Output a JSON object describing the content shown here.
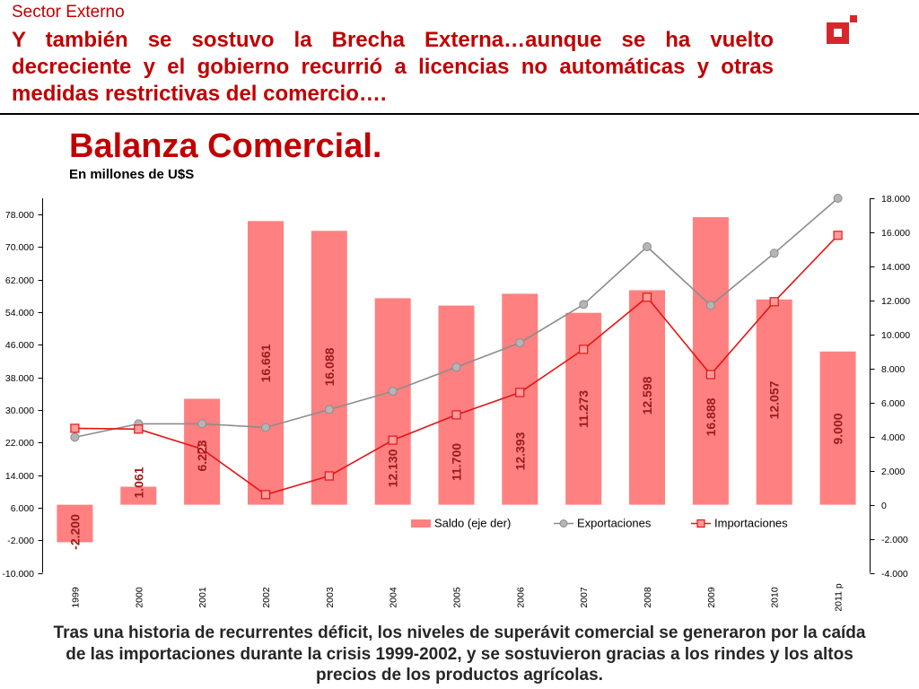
{
  "header": {
    "section": "Sector Externo",
    "headline_lines": [
      "Y también se sostuvo la Brecha Externa…aunque se ha vuelto",
      "decreciente y el gobierno recurrió a licencias no automáticas y otras",
      "medidas restrictivas del comercio…."
    ]
  },
  "logo": {
    "icon": "logo-icon",
    "color": "#d9262c"
  },
  "chart_data": {
    "type": "bar",
    "title": "Balanza Comercial.",
    "subtitle": "En millones de U$S",
    "categories": [
      "1999",
      "2000",
      "2001",
      "2002",
      "2003",
      "2004",
      "2005",
      "2006",
      "2007",
      "2008",
      "2009",
      "2010",
      "2011 p"
    ],
    "series": [
      {
        "name": "Saldo (eje der)",
        "type": "bar",
        "axis": "right",
        "color": "#ff8080",
        "values": [
          -2200,
          1061,
          6223,
          16661,
          16088,
          12130,
          11700,
          12393,
          11273,
          12598,
          16888,
          12057,
          9000
        ],
        "data_labels": [
          "-2.200",
          "1.061",
          "6.223",
          "16.661",
          "16.088",
          "12.130",
          "11.700",
          "12.393",
          "11.273",
          "12.598",
          "16.888",
          "12.057",
          "9.000"
        ]
      },
      {
        "name": "Exportaciones",
        "type": "line",
        "axis": "left",
        "marker": "circle",
        "color": "#8c8c8c",
        "marker_fill": "#b5b5b5",
        "values": [
          23300,
          26600,
          26600,
          25700,
          30100,
          34600,
          40500,
          46500,
          55900,
          70100,
          55700,
          68500,
          82000
        ]
      },
      {
        "name": "Importaciones",
        "type": "line",
        "axis": "left",
        "marker": "square",
        "color": "#e41414",
        "marker_fill": "#ff9c9c",
        "values": [
          25500,
          25300,
          20400,
          9200,
          13800,
          22600,
          28800,
          34300,
          44900,
          57700,
          38700,
          56600,
          72900
        ]
      }
    ],
    "left_axis": {
      "ylim": [
        -10000,
        82000
      ],
      "ticks": [
        -10000,
        -2000,
        6000,
        14000,
        22000,
        30000,
        38000,
        46000,
        54000,
        62000,
        70000,
        78000
      ],
      "tick_labels": [
        "-10.000",
        "-2.000",
        "6.000",
        "14.000",
        "22.000",
        "30.000",
        "38.000",
        "46.000",
        "54.000",
        "62.000",
        "70.000",
        "78.000"
      ]
    },
    "right_axis": {
      "ylim": [
        -4000,
        18000
      ],
      "ticks": [
        -4000,
        -2000,
        0,
        2000,
        4000,
        6000,
        8000,
        10000,
        12000,
        14000,
        16000,
        18000
      ],
      "tick_labels": [
        "-4.000",
        "-2.000",
        "0",
        "2.000",
        "4.000",
        "6.000",
        "8.000",
        "10.000",
        "12.000",
        "14.000",
        "16.000",
        "18.000"
      ]
    },
    "grid": false,
    "legend": "bottom-right"
  },
  "footer": {
    "lines": [
      "Tras una historia de recurrentes déficit, los niveles de superávit comercial se generaron por la caída",
      "de las importaciones durante la crisis 1999-2002, y se sostuvieron gracias a los rindes y los altos",
      "precios de los productos agrícolas."
    ]
  }
}
